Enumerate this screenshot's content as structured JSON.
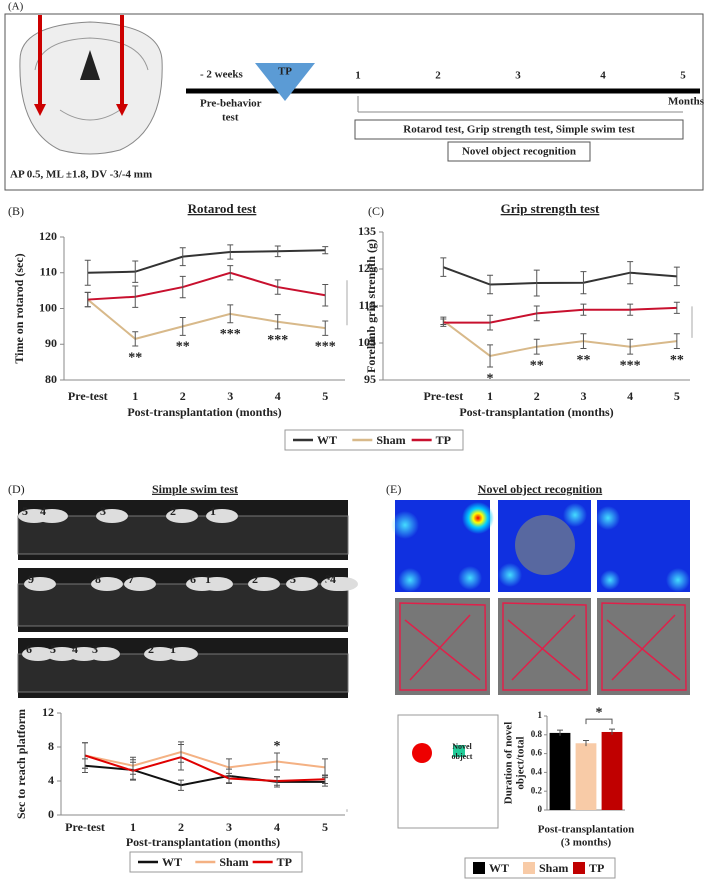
{
  "panels": {
    "labels": [
      "(A)",
      "(B)",
      "(C)",
      "(D)",
      "(E)"
    ],
    "swim_title": "Simple swim test",
    "nor_title": "Novel object recognition"
  },
  "timeline": {
    "pre": "- 2 weeks",
    "pre_label": [
      "Pre-behavior",
      "test"
    ],
    "tp": "TP",
    "months": [
      "1",
      "2",
      "3",
      "4",
      "5"
    ],
    "unit": "Months",
    "tests": "Rotarod test, Grip strength test, Simple swim test",
    "nor": "Novel object recognition",
    "coords": "AP 0.5, ML ±1.8, DV -3/-4 mm"
  },
  "swim_photos": [
    [
      "5",
      "4",
      "3",
      "2",
      "1"
    ],
    [
      "9",
      "8",
      "7",
      "6",
      "1",
      "2",
      "3",
      "5",
      "4"
    ],
    [
      "6",
      "5",
      "4",
      "3",
      "2",
      "1"
    ]
  ],
  "schematic_label": [
    "Novel",
    "object"
  ],
  "chart_data": [
    {
      "type": "line",
      "title": "Rotarod test",
      "ylabel": "Time on rotarod (sec)",
      "xlabel": "Post-transplantation (months)",
      "categories": [
        "Pre-test",
        "1",
        "2",
        "3",
        "4",
        "5"
      ],
      "ylim": [
        80,
        120
      ],
      "yticks": [
        80,
        90,
        100,
        110,
        120
      ],
      "series": [
        {
          "name": "WT",
          "color": "#333333",
          "values": [
            110,
            110.3,
            114.5,
            115.8,
            116,
            116.3
          ],
          "errors": [
            3.5,
            3,
            2.5,
            2,
            1.5,
            1
          ]
        },
        {
          "name": "Sham",
          "color": "#d8b98a",
          "values": [
            102.5,
            91.5,
            95,
            98.5,
            96.3,
            94.5
          ],
          "errors": [
            2,
            2,
            2.5,
            2.5,
            2,
            2
          ]
        },
        {
          "name": "TP",
          "color": "#c8102e",
          "values": [
            102.5,
            103.3,
            106,
            110,
            106,
            103.7
          ],
          "errors": [
            2,
            3,
            3,
            2,
            2,
            3
          ]
        }
      ],
      "significance": [
        null,
        "**",
        "**",
        "***",
        "***",
        "***"
      ]
    },
    {
      "type": "line",
      "title": "Grip strength test",
      "ylabel": "Forelimb grip strength (g)",
      "xlabel": "Post-transplantation (months)",
      "categories": [
        "Pre-test",
        "1",
        "2",
        "3",
        "4",
        "5"
      ],
      "ylim": [
        95,
        135
      ],
      "yticks": [
        95,
        105,
        115,
        125,
        135
      ],
      "series": [
        {
          "name": "WT",
          "color": "#333333",
          "values": [
            125.5,
            120.8,
            121.2,
            121.3,
            124,
            123
          ],
          "errors": [
            2.5,
            2.5,
            3.5,
            3,
            3,
            2.5
          ]
        },
        {
          "name": "Sham",
          "color": "#d8b98a",
          "values": [
            111,
            101.5,
            104,
            105.5,
            104,
            105.5
          ],
          "errors": [
            1,
            3,
            2,
            2,
            2,
            2
          ]
        },
        {
          "name": "TP",
          "color": "#c8102e",
          "values": [
            110.5,
            110.5,
            113,
            114,
            114,
            114.5
          ],
          "errors": [
            1,
            2,
            2,
            1.5,
            1.5,
            1.5
          ]
        }
      ],
      "significance": [
        null,
        "*",
        "**",
        "**",
        "***",
        "**"
      ]
    },
    {
      "type": "line",
      "ylabel": "Sec to reach platform",
      "xlabel": "Post-transplantation (months)",
      "categories": [
        "Pre-test",
        "1",
        "2",
        "3",
        "4",
        "5"
      ],
      "ylim": [
        0,
        12
      ],
      "yticks": [
        0,
        4,
        8,
        12
      ],
      "series": [
        {
          "name": "WT",
          "color": "#111111",
          "values": [
            5.8,
            5.3,
            3.5,
            4.6,
            3.9,
            3.9
          ],
          "errors": [
            0.8,
            1.2,
            0.6,
            0.8,
            0.6,
            0.5
          ]
        },
        {
          "name": "Sham",
          "color": "#f4b183",
          "values": [
            7,
            5.8,
            7.4,
            5.6,
            6.3,
            5.6
          ],
          "errors": [
            1.5,
            1,
            1.2,
            1,
            1,
            1
          ]
        },
        {
          "name": "TP",
          "color": "#e00000",
          "values": [
            7,
            5.2,
            6.8,
            4.3,
            4.0,
            4.2
          ],
          "errors": [
            1.5,
            1,
            1.5,
            0.6,
            0.5,
            0.5
          ]
        }
      ],
      "significance": [
        null,
        null,
        null,
        null,
        "*",
        null
      ]
    },
    {
      "type": "bar",
      "ylabel": [
        "Duration of novel",
        "object/total"
      ],
      "xlabel": [
        "Post-transplantation",
        "(3 months)"
      ],
      "ylim": [
        0,
        1
      ],
      "yticks": [
        0,
        0.2,
        0.4,
        0.6,
        0.8,
        1
      ],
      "series": [
        {
          "name": "WT",
          "color": "#000000",
          "values": [
            0.82
          ],
          "errors": [
            0.03
          ]
        },
        {
          "name": "Sham",
          "color": "#f8cba7",
          "values": [
            0.71
          ],
          "errors": [
            0.03
          ]
        },
        {
          "name": "TP",
          "color": "#c00000",
          "values": [
            0.83
          ],
          "errors": [
            0.03
          ]
        }
      ],
      "significance": "*"
    }
  ]
}
